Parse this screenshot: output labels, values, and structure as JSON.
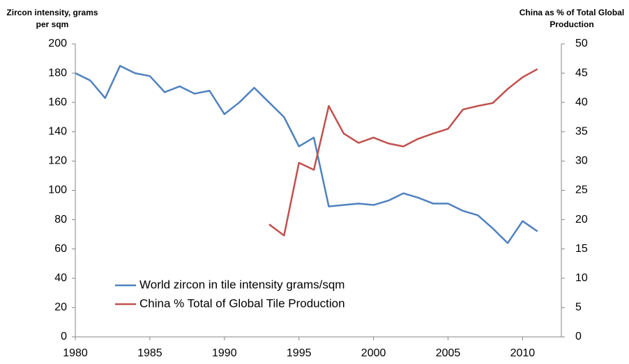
{
  "chart_data": {
    "type": "line",
    "y_label": "Zircon intensity, grams per sqm",
    "y2_label": "China as % of Total Global Production",
    "x": [
      1980,
      1981,
      1982,
      1983,
      1984,
      1985,
      1986,
      1987,
      1988,
      1989,
      1990,
      1991,
      1992,
      1993,
      1994,
      1995,
      1996,
      1997,
      1998,
      1999,
      2000,
      2001,
      2002,
      2003,
      2004,
      2005,
      2006,
      2007,
      2008,
      2009,
      2010,
      2011
    ],
    "series": [
      {
        "name": "World zircon in tile intensity grams/sqm",
        "color": "#4f81bd",
        "axis": "y",
        "values": [
          180,
          175,
          163,
          185,
          180,
          178,
          167,
          171,
          166,
          168,
          152,
          160,
          170,
          160,
          150,
          130,
          136,
          89,
          90,
          91,
          90,
          93,
          98,
          95,
          91,
          91,
          86,
          83,
          74,
          64,
          79,
          72
        ]
      },
      {
        "name": "China % Total of Global Tile Production",
        "color": "#c0504d",
        "axis": "y2",
        "values": [
          null,
          null,
          null,
          null,
          null,
          null,
          null,
          null,
          null,
          null,
          null,
          null,
          null,
          19.2,
          17.3,
          29.7,
          28.5,
          39.4,
          34.7,
          33.1,
          34.0,
          33.0,
          32.5,
          33.8,
          34.7,
          35.5,
          38.8,
          39.4,
          39.9,
          42.3,
          44.3,
          45.7
        ]
      }
    ],
    "xlim": [
      1980,
      2012.6
    ],
    "xticks": [
      1980,
      1985,
      1990,
      1995,
      2000,
      2005,
      2010
    ],
    "ylim": [
      0,
      200
    ],
    "yticks": [
      0,
      20,
      40,
      60,
      80,
      100,
      120,
      140,
      160,
      180,
      200
    ],
    "y2lim": [
      0,
      50
    ],
    "y2ticks": [
      0,
      5,
      10,
      15,
      20,
      25,
      30,
      35,
      40,
      45,
      50
    ],
    "legend": "lower-left"
  }
}
